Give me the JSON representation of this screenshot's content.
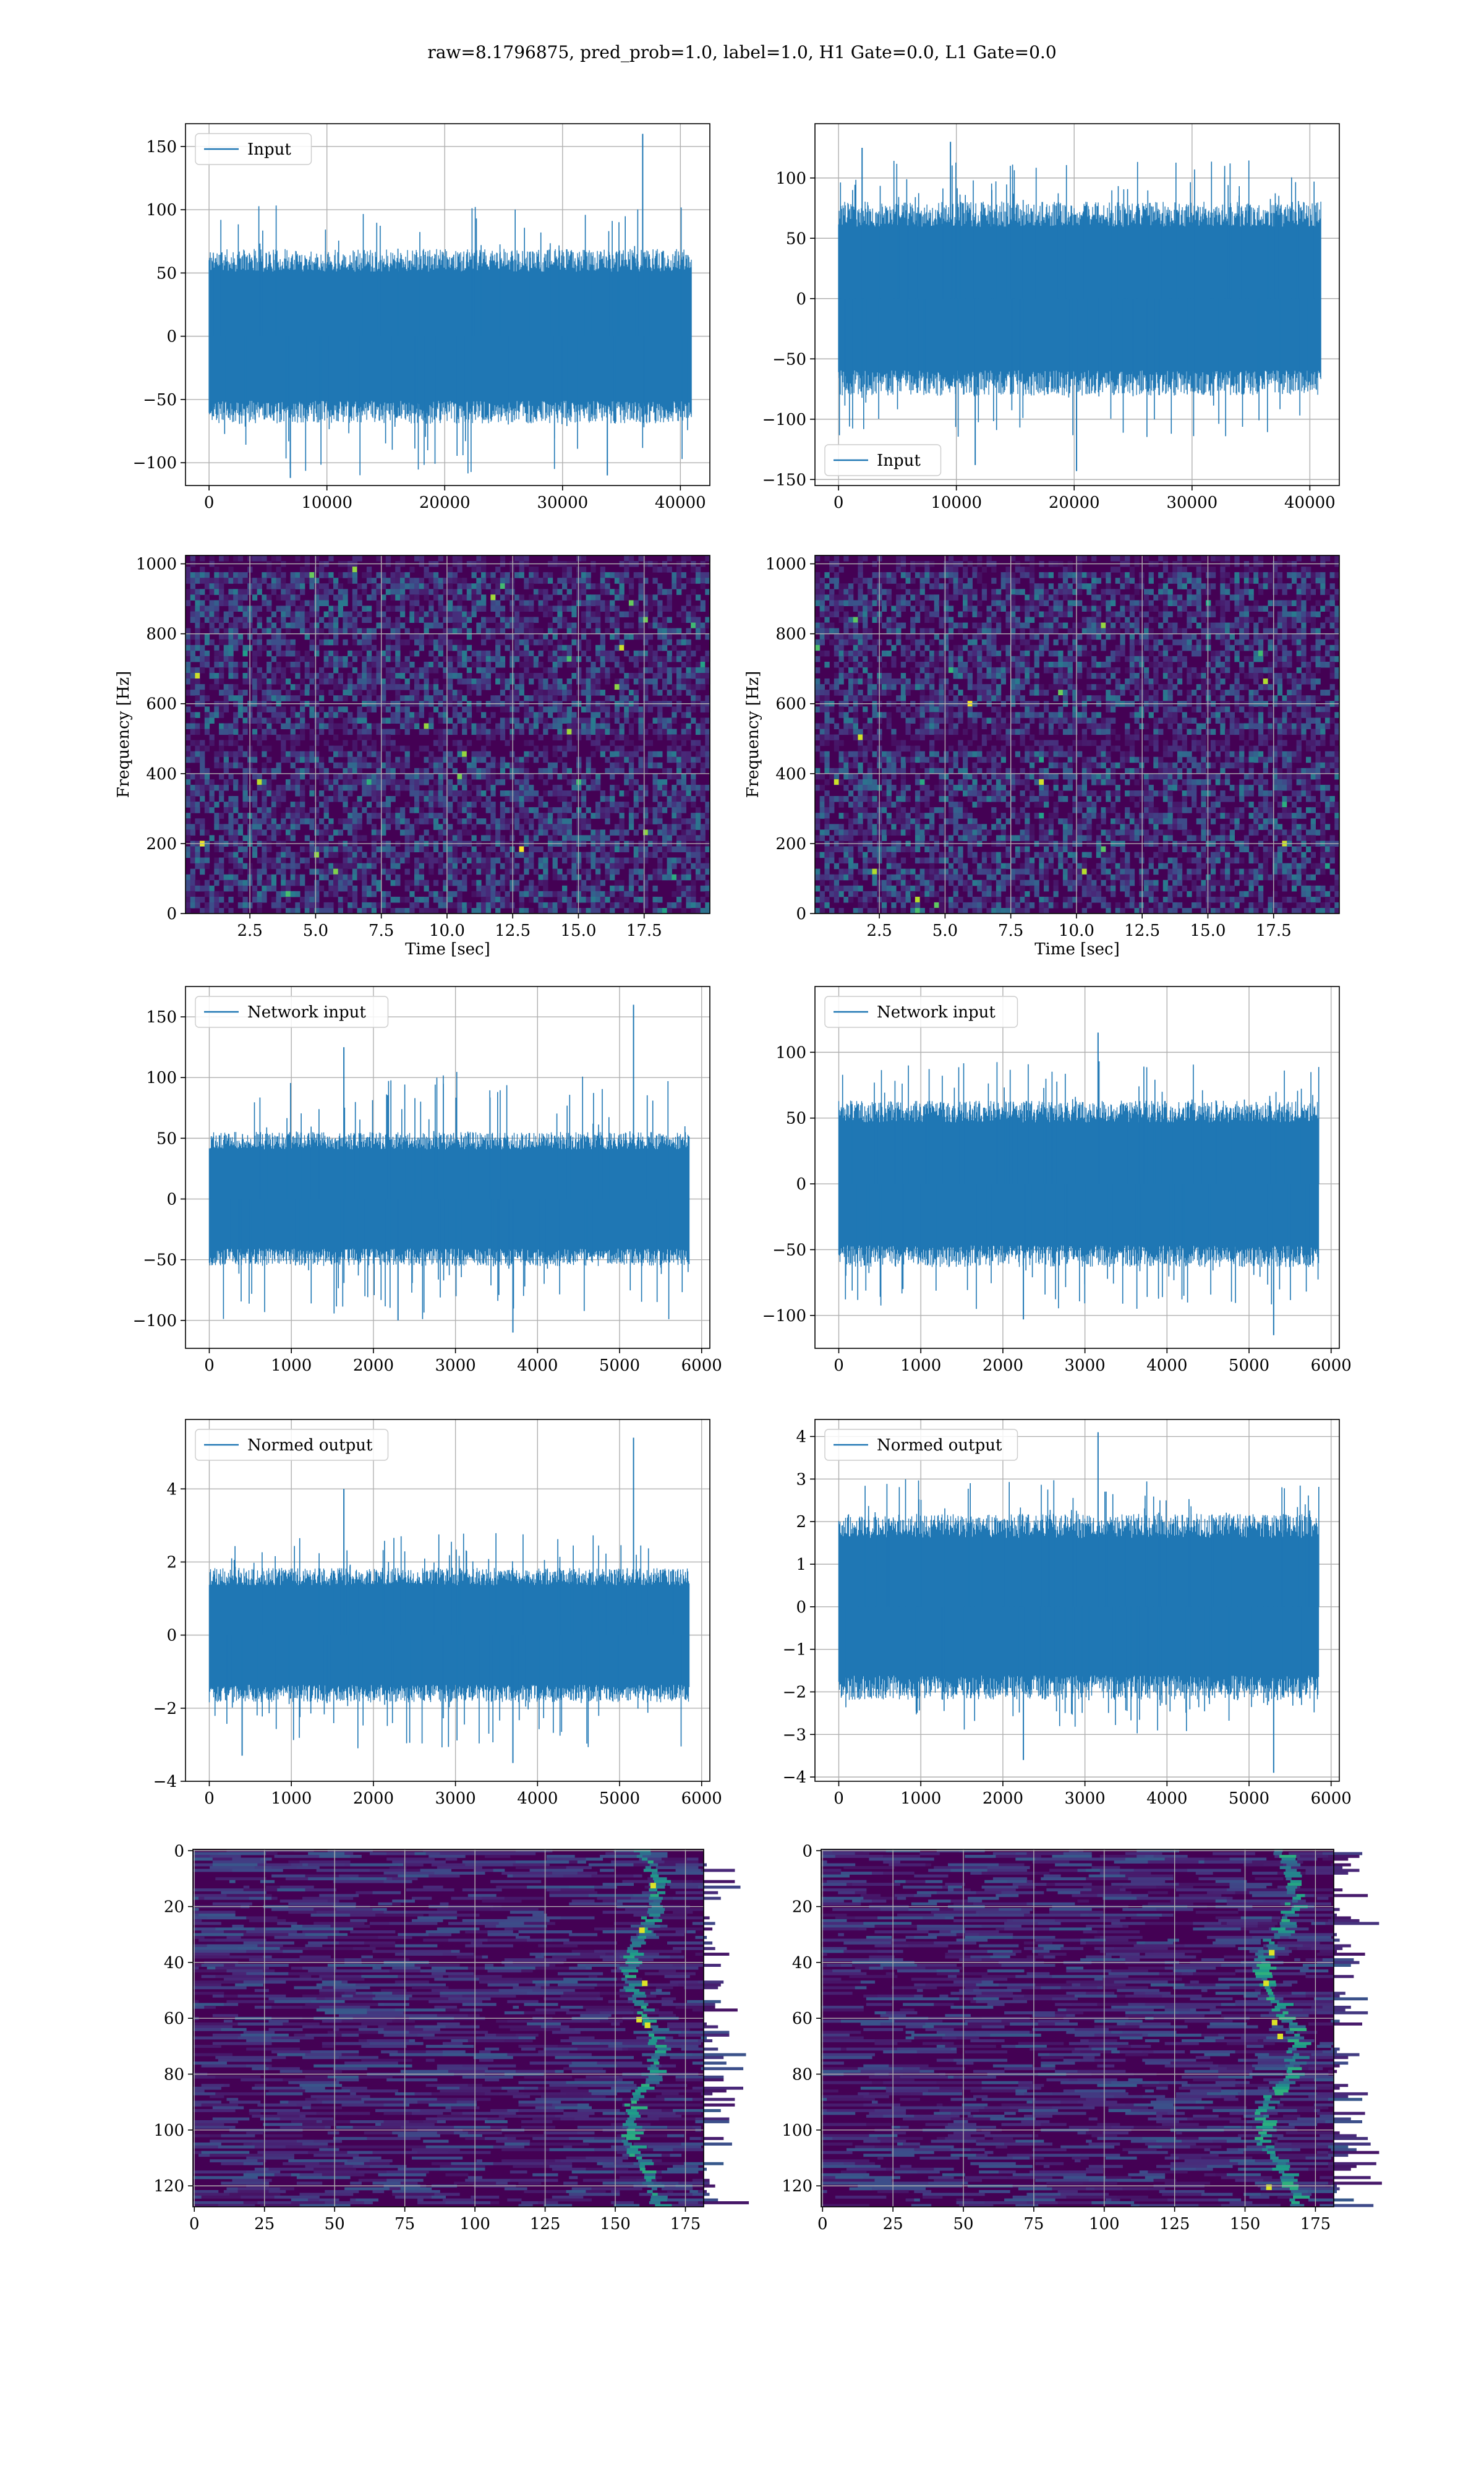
{
  "suptitle": "raw=8.1796875, pred_prob=1.0, label=1.0, H1 Gate=0.0, L1 Gate=0.0",
  "colors": {
    "series": "#1f77b4",
    "grid": "#b0b0b0",
    "spine": "#000000",
    "viridis_low": "#440154",
    "viridis_high": "#fde725"
  },
  "chart_data": [
    {
      "id": "input-h1",
      "type": "line",
      "style": "dense-noise",
      "seed": 11,
      "legend": "Input",
      "legend_loc": "upper left",
      "xlim": [
        -2000,
        42500
      ],
      "ylim": [
        -118,
        168
      ],
      "xrange": [
        0,
        40960
      ],
      "xticks": [
        0,
        10000,
        20000,
        30000,
        40000
      ],
      "xticklabels": [
        "0",
        "10000",
        "20000",
        "30000",
        "40000"
      ],
      "yticks": [
        -100,
        -50,
        0,
        50,
        100,
        150
      ],
      "yticklabels": [
        "−100",
        "−50",
        "0",
        "50",
        "100",
        "150"
      ],
      "envelope": {
        "core": 60,
        "peak_low": -110,
        "peak_high": 105,
        "n_spikes": 90
      },
      "peaks": [
        {
          "x": 36800,
          "y": 160
        },
        {
          "x": 6900,
          "y": -112
        },
        {
          "x": 33800,
          "y": -110
        }
      ],
      "grid": true
    },
    {
      "id": "input-l1",
      "type": "line",
      "style": "dense-noise",
      "seed": 23,
      "legend": "Input",
      "legend_loc": "lower left",
      "xlim": [
        -2000,
        42500
      ],
      "ylim": [
        -155,
        145
      ],
      "xrange": [
        0,
        40960
      ],
      "xticks": [
        0,
        10000,
        20000,
        30000,
        40000
      ],
      "xticklabels": [
        "0",
        "10000",
        "20000",
        "30000",
        "40000"
      ],
      "yticks": [
        -150,
        -100,
        -50,
        0,
        50,
        100
      ],
      "yticklabels": [
        "−150",
        "−100",
        "−50",
        "0",
        "50",
        "100"
      ],
      "envelope": {
        "core": 70,
        "peak_low": -115,
        "peak_high": 115,
        "n_spikes": 120
      },
      "peaks": [
        {
          "x": 9500,
          "y": 130
        },
        {
          "x": 2000,
          "y": 125
        },
        {
          "x": 20200,
          "y": -143
        },
        {
          "x": 11600,
          "y": -138
        }
      ],
      "grid": true
    },
    {
      "id": "spec-h1",
      "type": "heatmap",
      "style": "spectrogram",
      "seed": 37,
      "xlabel": "Time [sec]",
      "ylabel": "Frequency [Hz]",
      "xlim": [
        0.05,
        20.0
      ],
      "ylim": [
        0,
        1024
      ],
      "xticks": [
        2.5,
        5.0,
        7.5,
        10.0,
        12.5,
        15.0,
        17.5
      ],
      "xticklabels": [
        "2.5",
        "5.0",
        "7.5",
        "10.0",
        "12.5",
        "15.0",
        "17.5"
      ],
      "yticks": [
        0,
        200,
        400,
        600,
        800,
        1000
      ],
      "yticklabels": [
        "0",
        "200",
        "400",
        "600",
        "800",
        "1000"
      ],
      "dark_bands_hz": [
        500,
        1000
      ],
      "hot_pixels": 28,
      "grid": true
    },
    {
      "id": "spec-l1",
      "type": "heatmap",
      "style": "spectrogram",
      "seed": 41,
      "xlabel": "Time [sec]",
      "ylabel": "Frequency [Hz]",
      "xlim": [
        0.05,
        20.0
      ],
      "ylim": [
        0,
        1024
      ],
      "xticks": [
        2.5,
        5.0,
        7.5,
        10.0,
        12.5,
        15.0,
        17.5
      ],
      "xticklabels": [
        "2.5",
        "5.0",
        "7.5",
        "10.0",
        "12.5",
        "15.0",
        "17.5"
      ],
      "yticks": [
        0,
        200,
        400,
        600,
        800,
        1000
      ],
      "yticklabels": [
        "0",
        "200",
        "400",
        "600",
        "800",
        "1000"
      ],
      "dark_bands_hz": [
        500,
        1000
      ],
      "hot_pixels": 24,
      "grid": true
    },
    {
      "id": "net-h1",
      "type": "line",
      "style": "dense-noise",
      "seed": 53,
      "legend": "Network input",
      "legend_loc": "upper left",
      "xlim": [
        -290,
        6100
      ],
      "ylim": [
        -123,
        175
      ],
      "xrange": [
        0,
        5850
      ],
      "xticks": [
        0,
        1000,
        2000,
        3000,
        4000,
        5000,
        6000
      ],
      "xticklabels": [
        "0",
        "1000",
        "2000",
        "3000",
        "4000",
        "5000",
        "6000"
      ],
      "yticks": [
        -100,
        -50,
        0,
        50,
        100,
        150
      ],
      "yticklabels": [
        "−100",
        "−50",
        "0",
        "50",
        "100",
        "150"
      ],
      "envelope": {
        "core": 48,
        "peak_low": -100,
        "peak_high": 105,
        "n_spikes": 120
      },
      "peaks": [
        {
          "x": 5170,
          "y": 160
        },
        {
          "x": 1640,
          "y": 125
        },
        {
          "x": 3700,
          "y": -110
        },
        {
          "x": 2300,
          "y": -100
        }
      ],
      "grid": true
    },
    {
      "id": "net-l1",
      "type": "line",
      "style": "dense-noise",
      "seed": 67,
      "legend": "Network input",
      "legend_loc": "upper left",
      "xlim": [
        -290,
        6100
      ],
      "ylim": [
        -125,
        150
      ],
      "xrange": [
        0,
        5850
      ],
      "xticks": [
        0,
        1000,
        2000,
        3000,
        4000,
        5000,
        6000
      ],
      "xticklabels": [
        "0",
        "1000",
        "2000",
        "3000",
        "4000",
        "5000",
        "6000"
      ],
      "yticks": [
        -100,
        -50,
        0,
        50,
        100
      ],
      "yticklabels": [
        "−100",
        "−50",
        "0",
        "50",
        "100"
      ],
      "envelope": {
        "core": 55,
        "peak_low": -95,
        "peak_high": 95,
        "n_spikes": 120
      },
      "peaks": [
        {
          "x": 3160,
          "y": 115
        },
        {
          "x": 5300,
          "y": -115
        },
        {
          "x": 2250,
          "y": -103
        }
      ],
      "grid": true
    },
    {
      "id": "norm-h1",
      "type": "line",
      "style": "dense-noise",
      "seed": 79,
      "legend": "Normed output",
      "legend_loc": "upper left",
      "xlim": [
        -290,
        6100
      ],
      "ylim": [
        -4.0,
        5.9
      ],
      "xrange": [
        0,
        5850
      ],
      "xticks": [
        0,
        1000,
        2000,
        3000,
        4000,
        5000,
        6000
      ],
      "xticklabels": [
        "0",
        "1000",
        "2000",
        "3000",
        "4000",
        "5000",
        "6000"
      ],
      "yticks": [
        -4,
        -2,
        0,
        2,
        4
      ],
      "yticklabels": [
        "−4",
        "−2",
        "0",
        "2",
        "4"
      ],
      "envelope": {
        "core": 1.6,
        "peak_low": -3.1,
        "peak_high": 2.8,
        "n_spikes": 120
      },
      "peaks": [
        {
          "x": 5170,
          "y": 5.4
        },
        {
          "x": 1640,
          "y": 4.0
        },
        {
          "x": 3700,
          "y": -3.5
        },
        {
          "x": 400,
          "y": -3.3
        }
      ],
      "grid": true
    },
    {
      "id": "norm-l1",
      "type": "line",
      "style": "dense-noise",
      "seed": 83,
      "legend": "Normed output",
      "legend_loc": "upper left",
      "xlim": [
        -290,
        6100
      ],
      "ylim": [
        -4.1,
        4.4
      ],
      "xrange": [
        0,
        5850
      ],
      "xticks": [
        0,
        1000,
        2000,
        3000,
        4000,
        5000,
        6000
      ],
      "xticklabels": [
        "0",
        "1000",
        "2000",
        "3000",
        "4000",
        "5000",
        "6000"
      ],
      "yticks": [
        -4,
        -3,
        -2,
        -1,
        0,
        1,
        2,
        3,
        4
      ],
      "yticklabels": [
        "−4",
        "−3",
        "−2",
        "−1",
        "0",
        "1",
        "2",
        "3",
        "4"
      ],
      "envelope": {
        "core": 1.9,
        "peak_low": -3.0,
        "peak_high": 3.0,
        "n_spikes": 120
      },
      "peaks": [
        {
          "x": 3160,
          "y": 4.1
        },
        {
          "x": 5300,
          "y": -3.9
        },
        {
          "x": 2250,
          "y": -3.6
        }
      ],
      "grid": true
    },
    {
      "id": "feat-h1",
      "type": "heatmap",
      "style": "features",
      "seed": 97,
      "xlim": [
        -0.5,
        181.5
      ],
      "ylim": [
        127.5,
        -0.5
      ],
      "xticks": [
        0,
        25,
        50,
        75,
        100,
        125,
        150,
        175
      ],
      "xticklabels": [
        "0",
        "25",
        "50",
        "75",
        "100",
        "125",
        "150",
        "175"
      ],
      "yticks": [
        0,
        20,
        40,
        60,
        80,
        100,
        120
      ],
      "yticklabels": [
        "0",
        "20",
        "40",
        "60",
        "80",
        "100",
        "120"
      ],
      "signal_band": [
        151,
        168
      ],
      "hot_cells": [
        [
          160,
          47
        ],
        [
          158,
          60
        ],
        [
          163,
          12
        ],
        [
          159,
          28
        ],
        [
          161,
          62
        ]
      ],
      "grid": true
    },
    {
      "id": "feat-l1",
      "type": "heatmap",
      "style": "features",
      "seed": 101,
      "xlim": [
        -0.5,
        181.5
      ],
      "ylim": [
        127.5,
        -0.5
      ],
      "xticks": [
        0,
        25,
        50,
        75,
        100,
        125,
        150,
        175
      ],
      "xticklabels": [
        "0",
        "25",
        "50",
        "75",
        "100",
        "125",
        "150",
        "175"
      ],
      "yticks": [
        0,
        20,
        40,
        60,
        80,
        100,
        120
      ],
      "yticklabels": [
        "0",
        "20",
        "40",
        "60",
        "80",
        "100",
        "120"
      ],
      "signal_band": [
        152,
        172
      ],
      "hot_cells": [
        [
          157,
          47
        ],
        [
          160,
          61
        ],
        [
          159,
          36
        ],
        [
          162,
          66
        ],
        [
          158,
          120
        ]
      ],
      "grid": true
    }
  ]
}
